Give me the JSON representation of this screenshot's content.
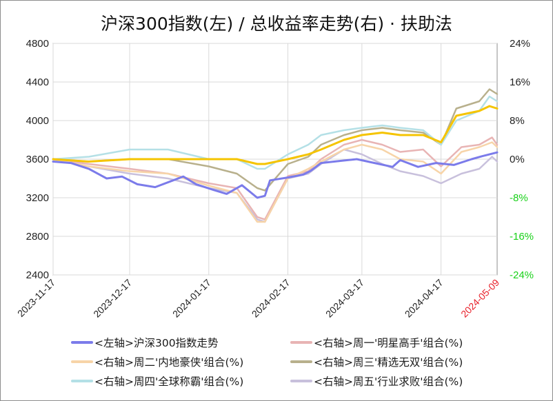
{
  "chart_data": {
    "type": "line",
    "title": "沪深300指数(左) / 总收益率走势(右) · 扶助法",
    "x_ticks": [
      "2023-11-17",
      "2023-12-17",
      "2024-01-17",
      "2024-02-17",
      "2024-03-17",
      "2024-04-17",
      "2024-05-09"
    ],
    "x_range": [
      "2023-11-17",
      "2024-05-09"
    ],
    "y_left": {
      "ticks": [
        "4800",
        "4400",
        "4000",
        "3600",
        "3200",
        "2800",
        "2400"
      ],
      "range": [
        2400,
        4800
      ]
    },
    "y_right": {
      "ticks": [
        "24%",
        "16%",
        "8%",
        "0%",
        "-8%",
        "-16%",
        "-24%"
      ],
      "range": [
        -24,
        24
      ],
      "unit": "%"
    },
    "grid": true,
    "legend_position": "bottom",
    "series": [
      {
        "name": "<左轴>沪深300指数走势",
        "axis": "left",
        "color": "#7b7bea",
        "points": [
          [
            "2023-11-17",
            3575
          ],
          [
            "2023-11-24",
            3560
          ],
          [
            "2023-12-01",
            3500
          ],
          [
            "2023-12-08",
            3400
          ],
          [
            "2023-12-14",
            3420
          ],
          [
            "2023-12-20",
            3340
          ],
          [
            "2023-12-27",
            3310
          ],
          [
            "2024-01-03",
            3380
          ],
          [
            "2024-01-07",
            3420
          ],
          [
            "2024-01-12",
            3340
          ],
          [
            "2024-01-19",
            3280
          ],
          [
            "2024-01-24",
            3240
          ],
          [
            "2024-01-30",
            3330
          ],
          [
            "2024-02-05",
            3200
          ],
          [
            "2024-02-08",
            3220
          ],
          [
            "2024-02-10",
            3380
          ],
          [
            "2024-02-17",
            3410
          ],
          [
            "2024-02-23",
            3440
          ],
          [
            "2024-02-26",
            3480
          ],
          [
            "2024-03-01",
            3560
          ],
          [
            "2024-03-08",
            3580
          ],
          [
            "2024-03-15",
            3600
          ],
          [
            "2024-03-22",
            3560
          ],
          [
            "2024-03-29",
            3520
          ],
          [
            "2024-04-01",
            3590
          ],
          [
            "2024-04-08",
            3520
          ],
          [
            "2024-04-15",
            3560
          ],
          [
            "2024-04-22",
            3540
          ],
          [
            "2024-04-29",
            3600
          ],
          [
            "2024-05-03",
            3630
          ],
          [
            "2024-05-09",
            3670
          ]
        ]
      },
      {
        "name": "<右轴>周一'明星高手'组合(%)",
        "axis": "right",
        "color": "#e8b4b4",
        "points": [
          [
            "2023-11-17",
            0
          ],
          [
            "2023-12-01",
            -1
          ],
          [
            "2023-12-17",
            -2
          ],
          [
            "2024-01-01",
            -3
          ],
          [
            "2024-01-17",
            -5
          ],
          [
            "2024-01-28",
            -6
          ],
          [
            "2024-02-05",
            -12
          ],
          [
            "2024-02-08",
            -12.5
          ],
          [
            "2024-02-17",
            -3.5
          ],
          [
            "2024-02-25",
            -2.5
          ],
          [
            "2024-03-01",
            0
          ],
          [
            "2024-03-10",
            3
          ],
          [
            "2024-03-17",
            4
          ],
          [
            "2024-03-25",
            3
          ],
          [
            "2024-04-01",
            1.5
          ],
          [
            "2024-04-10",
            2
          ],
          [
            "2024-04-17",
            -1.5
          ],
          [
            "2024-04-25",
            2.5
          ],
          [
            "2024-05-02",
            3
          ],
          [
            "2024-05-07",
            4.5
          ],
          [
            "2024-05-09",
            3
          ]
        ]
      },
      {
        "name": "<右轴>周二'内地豪侠'组合(%)",
        "axis": "right",
        "color": "#f7d4a8",
        "points": [
          [
            "2023-11-17",
            0
          ],
          [
            "2023-12-01",
            -1.5
          ],
          [
            "2023-12-17",
            -2.5
          ],
          [
            "2024-01-01",
            -3
          ],
          [
            "2024-01-17",
            -5.5
          ],
          [
            "2024-01-28",
            -7
          ],
          [
            "2024-02-05",
            -13
          ],
          [
            "2024-02-08",
            -13
          ],
          [
            "2024-02-17",
            -4
          ],
          [
            "2024-02-25",
            -2
          ],
          [
            "2024-03-01",
            -0.5
          ],
          [
            "2024-03-10",
            2
          ],
          [
            "2024-03-17",
            3
          ],
          [
            "2024-03-25",
            2
          ],
          [
            "2024-04-01",
            0
          ],
          [
            "2024-04-10",
            -0.5
          ],
          [
            "2024-04-17",
            -3
          ],
          [
            "2024-04-25",
            1.5
          ],
          [
            "2024-05-02",
            2.5
          ],
          [
            "2024-05-07",
            3.5
          ],
          [
            "2024-05-09",
            2.5
          ]
        ]
      },
      {
        "name": "<右轴>周三'精选无双'组合(%)",
        "axis": "right",
        "color": "#b8b08c",
        "points": [
          [
            "2023-11-17",
            0
          ],
          [
            "2023-12-01",
            -0.5
          ],
          [
            "2023-12-17",
            0
          ],
          [
            "2024-01-01",
            0
          ],
          [
            "2024-01-17",
            -1.5
          ],
          [
            "2024-01-28",
            -3
          ],
          [
            "2024-02-05",
            -6
          ],
          [
            "2024-02-08",
            -6.5
          ],
          [
            "2024-02-17",
            -1
          ],
          [
            "2024-02-25",
            0.5
          ],
          [
            "2024-03-01",
            3
          ],
          [
            "2024-03-10",
            5
          ],
          [
            "2024-03-17",
            6
          ],
          [
            "2024-03-25",
            6.5
          ],
          [
            "2024-04-01",
            6
          ],
          [
            "2024-04-10",
            5.5
          ],
          [
            "2024-04-17",
            3
          ],
          [
            "2024-04-23",
            10.5
          ],
          [
            "2024-05-02",
            12
          ],
          [
            "2024-05-06",
            14.5
          ],
          [
            "2024-05-09",
            13.5
          ]
        ]
      },
      {
        "name": "<右轴>周四'全球称霸'组合(%)",
        "axis": "right",
        "color": "#b4e0e6",
        "points": [
          [
            "2023-11-17",
            0
          ],
          [
            "2023-12-01",
            0.5
          ],
          [
            "2023-12-17",
            2
          ],
          [
            "2024-01-01",
            2
          ],
          [
            "2024-01-17",
            0
          ],
          [
            "2024-01-28",
            0
          ],
          [
            "2024-02-05",
            -2
          ],
          [
            "2024-02-08",
            -2
          ],
          [
            "2024-02-17",
            1
          ],
          [
            "2024-02-25",
            3
          ],
          [
            "2024-03-01",
            5
          ],
          [
            "2024-03-10",
            6
          ],
          [
            "2024-03-17",
            6.5
          ],
          [
            "2024-03-25",
            7
          ],
          [
            "2024-04-01",
            6.5
          ],
          [
            "2024-04-10",
            6
          ],
          [
            "2024-04-17",
            3
          ],
          [
            "2024-04-23",
            8
          ],
          [
            "2024-05-02",
            10
          ],
          [
            "2024-05-06",
            13
          ],
          [
            "2024-05-09",
            12
          ]
        ]
      },
      {
        "name": "<右轴>周五'行业求败'组合(%)",
        "axis": "right",
        "color": "#c8c0dc",
        "points": [
          [
            "2023-11-17",
            0
          ],
          [
            "2023-12-01",
            -1.5
          ],
          [
            "2023-12-17",
            -3
          ],
          [
            "2024-01-01",
            -4
          ],
          [
            "2024-01-17",
            -6
          ],
          [
            "2024-01-28",
            -7
          ],
          [
            "2024-02-05",
            -12.5
          ],
          [
            "2024-02-08",
            -13
          ],
          [
            "2024-02-17",
            -4
          ],
          [
            "2024-02-25",
            -3
          ],
          [
            "2024-03-01",
            -1
          ],
          [
            "2024-03-10",
            2
          ],
          [
            "2024-03-17",
            1
          ],
          [
            "2024-03-25",
            -1
          ],
          [
            "2024-04-01",
            -2.5
          ],
          [
            "2024-04-10",
            -3.5
          ],
          [
            "2024-04-17",
            -5
          ],
          [
            "2024-04-25",
            -3
          ],
          [
            "2024-05-02",
            -2
          ],
          [
            "2024-05-07",
            0.5
          ],
          [
            "2024-05-09",
            -0.5
          ]
        ]
      },
      {
        "name": "",
        "axis": "right",
        "color": "#f5c400",
        "points": [
          [
            "2023-11-17",
            0
          ],
          [
            "2023-12-01",
            -0.5
          ],
          [
            "2023-12-17",
            0
          ],
          [
            "2024-01-01",
            0
          ],
          [
            "2024-01-17",
            0
          ],
          [
            "2024-01-28",
            0
          ],
          [
            "2024-02-05",
            -1
          ],
          [
            "2024-02-08",
            -1
          ],
          [
            "2024-02-17",
            0
          ],
          [
            "2024-02-25",
            1
          ],
          [
            "2024-03-01",
            2
          ],
          [
            "2024-03-10",
            4
          ],
          [
            "2024-03-17",
            5
          ],
          [
            "2024-03-25",
            5.5
          ],
          [
            "2024-04-01",
            5
          ],
          [
            "2024-04-10",
            5
          ],
          [
            "2024-04-17",
            3.5
          ],
          [
            "2024-04-23",
            9
          ],
          [
            "2024-05-02",
            10
          ],
          [
            "2024-05-06",
            11
          ],
          [
            "2024-05-09",
            10.5
          ]
        ]
      }
    ]
  }
}
